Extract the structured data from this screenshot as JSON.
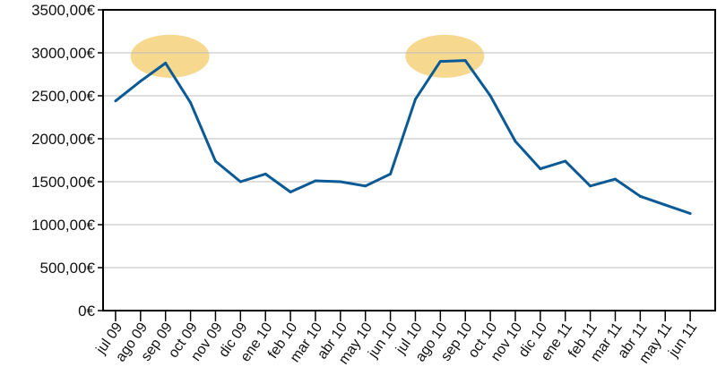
{
  "chart_data": {
    "type": "line",
    "title": "",
    "xlabel": "",
    "ylabel": "",
    "grid": true,
    "legend": "none",
    "ylim": [
      0,
      3500
    ],
    "y_ticks": [
      "0€",
      "500,00€",
      "1000,00€",
      "1500,00€",
      "2000,00€",
      "2500,00€",
      "3000,00€",
      "3500,00€"
    ],
    "categories": [
      "jul 09",
      "ago 09",
      "sep 09",
      "oct 09",
      "nov 09",
      "dic 09",
      "ene 10",
      "feb 10",
      "mar 10",
      "abr 10",
      "may 10",
      "jun 10",
      "jul 10",
      "ago 10",
      "sep 10",
      "oct 10",
      "nov 10",
      "dic 10",
      "ene 11",
      "feb 11",
      "mar 11",
      "abr 11",
      "may 11",
      "jun 11"
    ],
    "series": [
      {
        "values": [
          2440,
          2670,
          2880,
          2420,
          1740,
          1500,
          1590,
          1380,
          1510,
          1500,
          1450,
          1590,
          2460,
          2900,
          2910,
          2500,
          1970,
          1650,
          1740,
          1450,
          1530,
          1330,
          1230,
          1130
        ],
        "color": "#0a5a96"
      }
    ],
    "highlights": [
      {
        "category": "sep 09",
        "value": 2960,
        "color": "#f6d98f"
      },
      {
        "category": "ago 10",
        "value": 2960,
        "color": "#f6d98f"
      }
    ],
    "colors": {
      "line": "#0a5a96",
      "grid": "#bdbdbd",
      "frame": "#000000",
      "highlight": "#f6d98f"
    }
  }
}
